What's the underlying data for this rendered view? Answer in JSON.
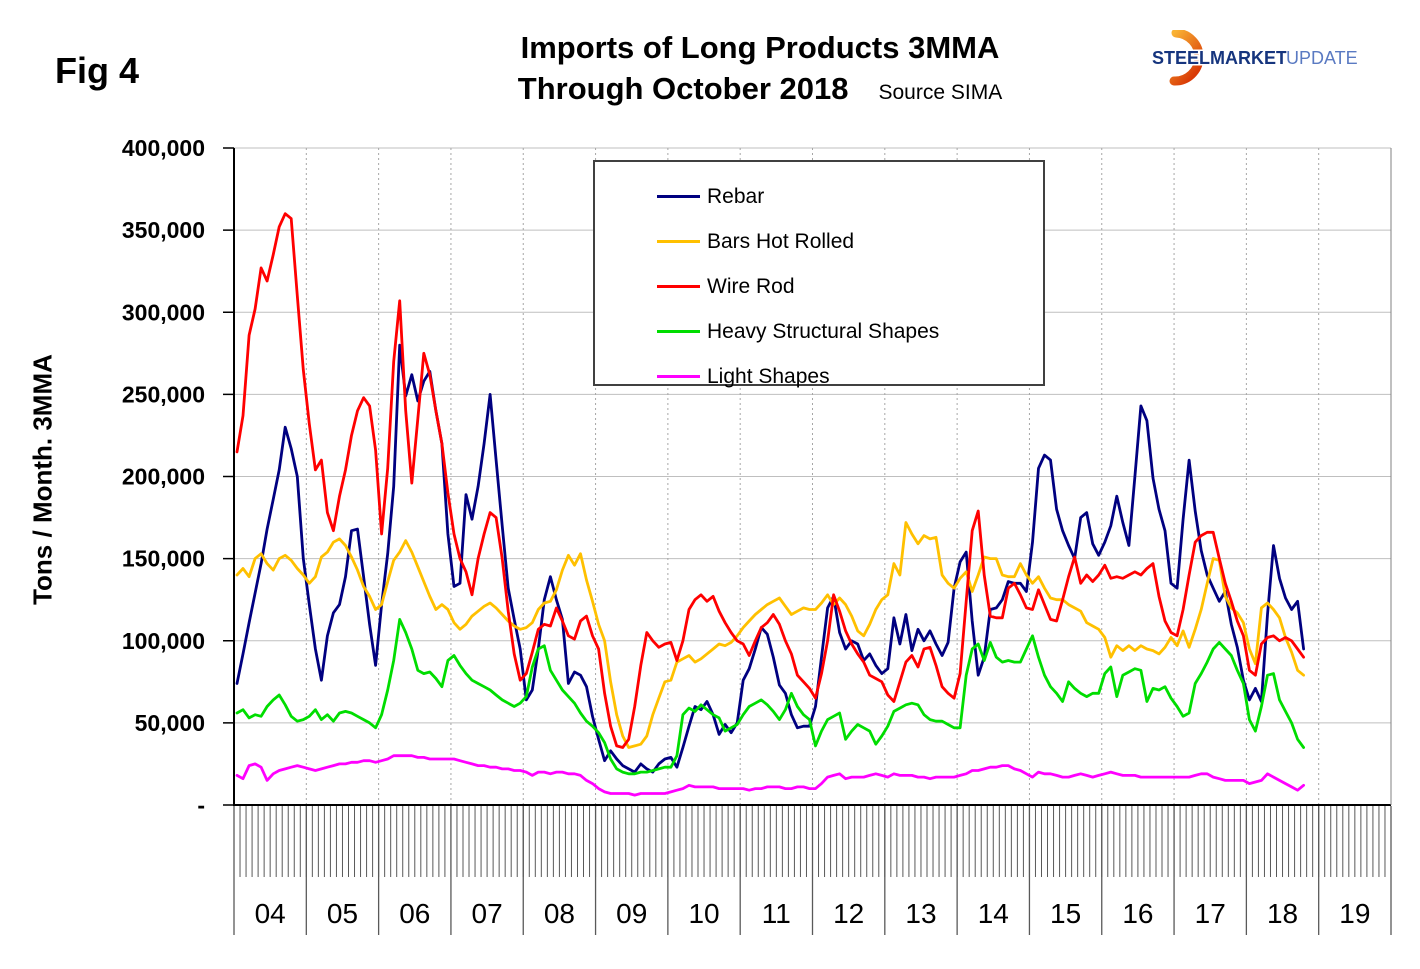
{
  "fig_label": "Fig 4",
  "title": {
    "line1": "Imports of Long Products 3MMA",
    "line2": "Through October 2018",
    "source": "Source SIMA"
  },
  "logo": {
    "steel": "STEEL",
    "market": "MARKET",
    "update": "UPDATE",
    "steel_color": "#16357e",
    "market_color": "#16357e",
    "update_color": "#5a7ac2",
    "swoosh_colors": [
      "#f9b234",
      "#d93a06"
    ]
  },
  "chart_data": {
    "type": "line",
    "title": "Imports of Long Products 3MMA Through October 2018",
    "values_unit": "tons per month (values stored in thousands)",
    "y_axis": {
      "label": "Tons / Month. 3MMA",
      "min": 0,
      "max": 400000,
      "tick_step": 50000,
      "tick_labels": [
        "400,000",
        "350,000",
        "300,000",
        "250,000",
        "200,000",
        "150,000",
        "100,000",
        "50,000",
        "-"
      ]
    },
    "x_axis": {
      "years": [
        "04",
        "05",
        "06",
        "07",
        "08",
        "09",
        "10",
        "11",
        "12",
        "13",
        "14",
        "15",
        "16",
        "17",
        "18",
        "19"
      ],
      "months_per_year": 12,
      "data_start": "Jan 2004",
      "data_end": "Oct 2018",
      "minor_ticks": "monthly"
    },
    "legend_position": "top-center-box",
    "grid": {
      "horizontal": "solid",
      "vertical_year_lines": "dotted"
    },
    "series": [
      {
        "name": "Rebar",
        "color": "#000080",
        "values": [
          74,
          92,
          111,
          129,
          147,
          168,
          186,
          204,
          230,
          217,
          200,
          150,
          122,
          95,
          76,
          103,
          117,
          122,
          139,
          167,
          168,
          139,
          110,
          85,
          122,
          153,
          194,
          280,
          249,
          262,
          246,
          258,
          264,
          240,
          220,
          165,
          133,
          135,
          189,
          174,
          194,
          220,
          250,
          210,
          170,
          132,
          113,
          95,
          64,
          70,
          95,
          125,
          139,
          125,
          113,
          74,
          81,
          79,
          72,
          54,
          40,
          27,
          33,
          28,
          24,
          22,
          20,
          25,
          22,
          20,
          25,
          28,
          29,
          23,
          35,
          48,
          60,
          58,
          63,
          55,
          43,
          49,
          44,
          50,
          76,
          83,
          95,
          108,
          104,
          90,
          73,
          68,
          55,
          47,
          48,
          48,
          60,
          90,
          120,
          127,
          105,
          95,
          100,
          98,
          88,
          92,
          85,
          80,
          83,
          114,
          98,
          116,
          94,
          107,
          100,
          106,
          98,
          91,
          99,
          132,
          148,
          154,
          112,
          79,
          90,
          119,
          120,
          125,
          136,
          135,
          135,
          130,
          160,
          205,
          213,
          210,
          180,
          167,
          158,
          150,
          175,
          178,
          159,
          152,
          160,
          170,
          188,
          172,
          158,
          200,
          243,
          234,
          199,
          180,
          167,
          135,
          132,
          174,
          210,
          179,
          155,
          140,
          132,
          124,
          130,
          110,
          96,
          76,
          64,
          71,
          63,
          116,
          158,
          138,
          126,
          119,
          124,
          95
        ]
      },
      {
        "name": "Bars Hot Rolled",
        "color": "#FFC000",
        "values": [
          140,
          144,
          139,
          150,
          153,
          147,
          143,
          150,
          152,
          149,
          144,
          140,
          135,
          139,
          151,
          154,
          160,
          162,
          158,
          151,
          143,
          133,
          127,
          119,
          122,
          136,
          149,
          154,
          161,
          154,
          145,
          136,
          127,
          119,
          122,
          119,
          111,
          107,
          110,
          115,
          118,
          121,
          123,
          120,
          116,
          112,
          109,
          107,
          108,
          111,
          119,
          123,
          124,
          131,
          143,
          152,
          146,
          153,
          137,
          124,
          110,
          100,
          75,
          55,
          42,
          35,
          36,
          37,
          42,
          55,
          65,
          75,
          76,
          87,
          89,
          91,
          87,
          89,
          92,
          95,
          98,
          97,
          99,
          103,
          108,
          112,
          116,
          119,
          122,
          124,
          126,
          121,
          116,
          118,
          120,
          119,
          119,
          123,
          128,
          122,
          126,
          122,
          115,
          106,
          103,
          110,
          119,
          125,
          128,
          147,
          140,
          172,
          165,
          159,
          164,
          162,
          163,
          140,
          135,
          132,
          138,
          142,
          130,
          140,
          151,
          150,
          150,
          140,
          139,
          139,
          147,
          140,
          135,
          139,
          132,
          126,
          125,
          125,
          122,
          120,
          118,
          111,
          109,
          107,
          102,
          90,
          97,
          94,
          97,
          94,
          97,
          95,
          94,
          92,
          96,
          102,
          97,
          106,
          96,
          107,
          119,
          135,
          150,
          149,
          127,
          120,
          117,
          111,
          95,
          86,
          120,
          123,
          119,
          114,
          102,
          93,
          82,
          79
        ]
      },
      {
        "name": "Wire Rod",
        "color": "#FF0000",
        "values": [
          215,
          237,
          286,
          302,
          327,
          319,
          335,
          352,
          360,
          357,
          310,
          265,
          232,
          204,
          210,
          178,
          167,
          188,
          204,
          225,
          240,
          248,
          243,
          216,
          165,
          205,
          270,
          307,
          240,
          196,
          235,
          275,
          262,
          240,
          220,
          190,
          165,
          150,
          142,
          128,
          150,
          165,
          178,
          175,
          150,
          118,
          92,
          76,
          80,
          93,
          107,
          110,
          109,
          120,
          112,
          103,
          101,
          112,
          115,
          103,
          95,
          68,
          48,
          36,
          35,
          40,
          60,
          85,
          105,
          100,
          96,
          98,
          99,
          88,
          100,
          119,
          125,
          128,
          124,
          127,
          118,
          111,
          105,
          100,
          98,
          91,
          100,
          108,
          111,
          116,
          110,
          100,
          92,
          79,
          75,
          71,
          65,
          80,
          100,
          128,
          118,
          106,
          98,
          92,
          87,
          79,
          77,
          75,
          67,
          63,
          75,
          87,
          91,
          84,
          95,
          96,
          85,
          72,
          68,
          65,
          80,
          124,
          167,
          179,
          140,
          115,
          114,
          114,
          132,
          135,
          128,
          120,
          119,
          131,
          122,
          113,
          112,
          125,
          139,
          151,
          135,
          140,
          136,
          140,
          146,
          138,
          139,
          138,
          140,
          142,
          140,
          144,
          147,
          127,
          112,
          105,
          103,
          119,
          140,
          160,
          164,
          166,
          166,
          150,
          135,
          124,
          112,
          103,
          82,
          79,
          98,
          102,
          103,
          100,
          102,
          100,
          95,
          90
        ]
      },
      {
        "name": "Heavy Structural Shapes",
        "color": "#00DD00",
        "values": [
          56,
          58,
          53,
          55,
          54,
          60,
          64,
          67,
          61,
          54,
          51,
          52,
          54,
          58,
          52,
          55,
          51,
          56,
          57,
          56,
          54,
          52,
          50,
          47,
          55,
          70,
          88,
          113,
          105,
          95,
          82,
          80,
          81,
          77,
          72,
          88,
          91,
          85,
          80,
          76,
          74,
          72,
          70,
          67,
          64,
          62,
          60,
          62,
          66,
          84,
          95,
          97,
          82,
          76,
          70,
          66,
          62,
          56,
          51,
          48,
          44,
          38,
          28,
          22,
          20,
          19,
          19,
          20,
          20,
          21,
          22,
          23,
          23,
          30,
          55,
          59,
          57,
          61,
          58,
          55,
          53,
          45,
          47,
          49,
          55,
          60,
          62,
          64,
          61,
          57,
          52,
          58,
          68,
          60,
          55,
          52,
          36,
          45,
          52,
          54,
          56,
          40,
          45,
          49,
          47,
          45,
          37,
          42,
          48,
          57,
          59,
          61,
          62,
          61,
          55,
          52,
          51,
          51,
          49,
          47,
          47,
          79,
          95,
          98,
          88,
          99,
          90,
          87,
          88,
          87,
          87,
          95,
          103,
          90,
          79,
          72,
          68,
          63,
          75,
          71,
          68,
          66,
          68,
          68,
          80,
          84,
          66,
          79,
          81,
          83,
          82,
          63,
          71,
          70,
          72,
          65,
          60,
          54,
          56,
          74,
          80,
          87,
          95,
          99,
          95,
          91,
          82,
          74,
          52,
          45,
          60,
          79,
          80,
          64,
          57,
          50,
          40,
          35
        ]
      },
      {
        "name": "Light Shapes",
        "color": "#FF00FF",
        "values": [
          18,
          16,
          24,
          25,
          23,
          15,
          19,
          21,
          22,
          23,
          24,
          23,
          22,
          21,
          22,
          23,
          24,
          25,
          25,
          26,
          26,
          27,
          27,
          26,
          27,
          28,
          30,
          30,
          30,
          30,
          29,
          29,
          28,
          28,
          28,
          28,
          28,
          27,
          26,
          25,
          24,
          24,
          23,
          23,
          22,
          22,
          21,
          21,
          20,
          18,
          20,
          20,
          19,
          20,
          20,
          19,
          19,
          18,
          15,
          13,
          10,
          8,
          7,
          7,
          7,
          7,
          6,
          7,
          7,
          7,
          7,
          7,
          8,
          9,
          10,
          12,
          11,
          11,
          11,
          11,
          10,
          10,
          10,
          10,
          10,
          9,
          10,
          10,
          11,
          11,
          11,
          10,
          10,
          11,
          11,
          10,
          10,
          13,
          17,
          18,
          19,
          16,
          17,
          17,
          17,
          18,
          19,
          18,
          17,
          19,
          18,
          18,
          18,
          17,
          17,
          16,
          17,
          17,
          17,
          17,
          18,
          19,
          21,
          21,
          22,
          23,
          23,
          24,
          24,
          22,
          21,
          19,
          17,
          20,
          19,
          19,
          18,
          17,
          17,
          18,
          19,
          18,
          17,
          18,
          19,
          20,
          19,
          18,
          18,
          18,
          17,
          17,
          17,
          17,
          17,
          17,
          17,
          17,
          17,
          18,
          19,
          19,
          17,
          16,
          15,
          15,
          15,
          15,
          13,
          14,
          15,
          19,
          17,
          15,
          13,
          11,
          9,
          12
        ]
      }
    ]
  }
}
